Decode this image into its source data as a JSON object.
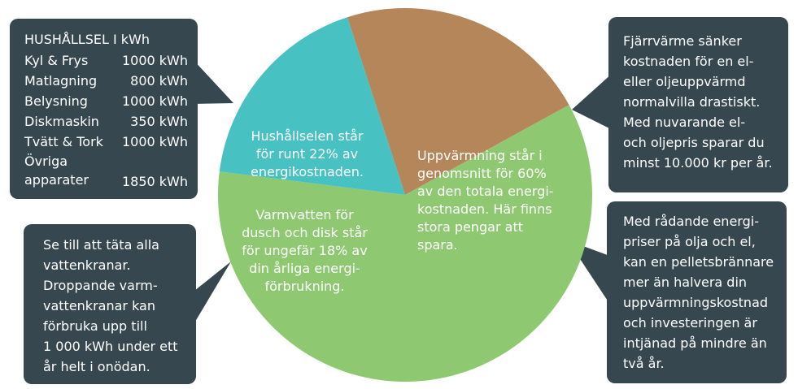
{
  "chart_data": {
    "type": "pie",
    "slices": [
      {
        "value": 22,
        "color": "#b5865a"
      },
      {
        "value": 60,
        "color": "#8ec972"
      },
      {
        "value": 18,
        "color": "#47c1c1"
      }
    ],
    "slice_labels": {
      "household": [
        "Hushållselen står",
        "för runt 22% av",
        "energikostnaden."
      ],
      "heating": [
        "Uppvärmning står i",
        "genomsnitt för 60%",
        "av den totala energi-",
        "kostnaden. Här finns",
        "stora pengar att",
        "spara."
      ],
      "hotwater": [
        "Varmvatten för",
        "dusch och disk står",
        "för ungefär 18% av",
        "din årliga energi-",
        "förbrukning."
      ]
    }
  },
  "household_box": {
    "title": "HUSHÅLLSEL I kWh",
    "rows": [
      {
        "label": [
          "Kyl & Frys"
        ],
        "value": "1000 kWh"
      },
      {
        "label": [
          "Matlagning"
        ],
        "value": "800 kWh"
      },
      {
        "label": [
          "Belysning"
        ],
        "value": "1000 kWh"
      },
      {
        "label": [
          "Diskmaskin"
        ],
        "value": "350 kWh"
      },
      {
        "label": [
          "Tvätt & Tork"
        ],
        "value": "1000 kWh"
      },
      {
        "label": [
          "Övriga",
          "apparater"
        ],
        "value": "1850 kWh"
      }
    ]
  },
  "faucet_box": {
    "lines": [
      "Se till att täta alla",
      "vattenkranar.",
      "Droppande varm-",
      "vattenkranar kan",
      "förbruka upp till",
      "1 000 kWh under ett",
      "år helt i onödan."
    ]
  },
  "district_box": {
    "lines": [
      "Fjärrvärme sänker",
      "kostnaden för en el-",
      "eller oljeuppvärmd",
      "normalvilla drastiskt.",
      "Med nuvarande el-",
      "och oljepris sparar du",
      "minst 10.000 kr per år."
    ]
  },
  "pellet_box": {
    "lines": [
      "Med rådande energi-",
      "priser på olja och el,",
      "kan en pelletsbrännare",
      "mer än halvera din",
      "uppvärmningskostnad",
      "och investeringen är",
      "intjänad på mindre än",
      "två år."
    ]
  },
  "colors": {
    "callout_bg": "#37474f",
    "household": "#b5865a",
    "heating": "#8ec972",
    "hotwater": "#47c1c1"
  }
}
